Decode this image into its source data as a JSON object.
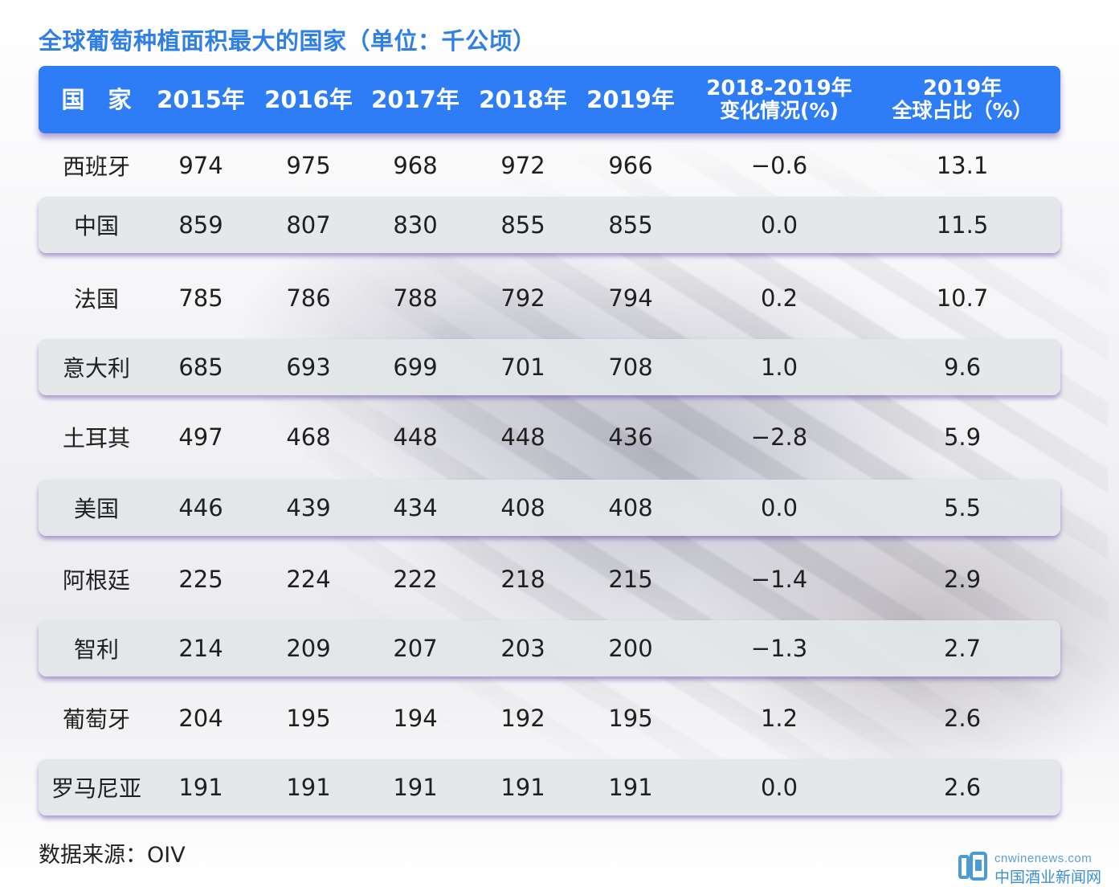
{
  "chart_data": {
    "type": "table",
    "title": "全球葡萄种植面积最大的国家（单位：千公顷）",
    "columns": [
      "国　家",
      "2015年",
      "2016年",
      "2017年",
      "2018年",
      "2019年",
      [
        "2018-2019年",
        "变化情况(%)"
      ],
      [
        "2019年",
        "全球占比（%）"
      ]
    ],
    "rows": [
      [
        "西班牙",
        "974",
        "975",
        "968",
        "972",
        "966",
        "−0.6",
        "13.1"
      ],
      [
        "中国",
        "859",
        "807",
        "830",
        "855",
        "855",
        "0.0",
        "11.5"
      ],
      [
        "法国",
        "785",
        "786",
        "788",
        "792",
        "794",
        "0.2",
        "10.7"
      ],
      [
        "意大利",
        "685",
        "693",
        "699",
        "701",
        "708",
        "1.0",
        "9.6"
      ],
      [
        "土耳其",
        "497",
        "468",
        "448",
        "448",
        "436",
        "−2.8",
        "5.9"
      ],
      [
        "美国",
        "446",
        "439",
        "434",
        "408",
        "408",
        "0.0",
        "5.5"
      ],
      [
        "阿根廷",
        "225",
        "224",
        "222",
        "218",
        "215",
        "−1.4",
        "2.9"
      ],
      [
        "智利",
        "214",
        "209",
        "207",
        "203",
        "200",
        "−1.3",
        "2.7"
      ],
      [
        "葡萄牙",
        "204",
        "195",
        "194",
        "192",
        "195",
        "1.2",
        "2.6"
      ],
      [
        "罗马尼亚",
        "191",
        "191",
        "191",
        "191",
        "191",
        "0.0",
        "2.6"
      ]
    ]
  },
  "footer": {
    "source": "数据来源：OIV"
  },
  "watermark": {
    "url": "cnwinenews.com",
    "name": "中国酒业新闻网",
    "icon": "cnwinenews-logo-icon"
  },
  "colors": {
    "title": "#2f7fe6",
    "header_bg": "#2e7cf6",
    "row_shade": "#e2e6e8"
  }
}
